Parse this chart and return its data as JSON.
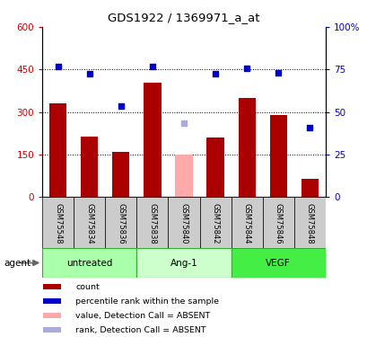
{
  "title": "GDS1922 / 1369971_a_at",
  "samples": [
    "GSM75548",
    "GSM75834",
    "GSM75836",
    "GSM75838",
    "GSM75840",
    "GSM75842",
    "GSM75844",
    "GSM75846",
    "GSM75848"
  ],
  "bar_values": [
    330,
    215,
    160,
    405,
    150,
    210,
    350,
    290,
    65
  ],
  "bar_colors": [
    "#aa0000",
    "#aa0000",
    "#aa0000",
    "#aa0000",
    "#ffaaaa",
    "#aa0000",
    "#aa0000",
    "#aa0000",
    "#aa0000"
  ],
  "scatter_values_left": [
    460,
    435,
    320,
    462,
    260,
    435,
    455,
    440,
    245
  ],
  "scatter_colors": [
    "#0000cc",
    "#0000cc",
    "#0000cc",
    "#0000cc",
    "#aaaadd",
    "#0000cc",
    "#0000cc",
    "#0000cc",
    "#0000cc"
  ],
  "groups": [
    {
      "label": "untreated",
      "start": 0,
      "end": 3,
      "color": "#aaffaa"
    },
    {
      "label": "Ang-1",
      "start": 3,
      "end": 6,
      "color": "#ccffcc"
    },
    {
      "label": "VEGF",
      "start": 6,
      "end": 9,
      "color": "#44ee44"
    }
  ],
  "left_yticks": [
    0,
    150,
    300,
    450,
    600
  ],
  "left_ylim": [
    0,
    600
  ],
  "right_yticks": [
    0,
    25,
    50,
    75,
    100
  ],
  "right_ylim": [
    0,
    100
  ],
  "left_tick_color": "#cc0000",
  "right_tick_color": "#0000cc",
  "sample_bg_color": "#cccccc",
  "legend_items": [
    {
      "color": "#aa0000",
      "label": "count"
    },
    {
      "color": "#0000cc",
      "label": "percentile rank within the sample"
    },
    {
      "color": "#ffaaaa",
      "label": "value, Detection Call = ABSENT"
    },
    {
      "color": "#aaaadd",
      "label": "rank, Detection Call = ABSENT"
    }
  ]
}
